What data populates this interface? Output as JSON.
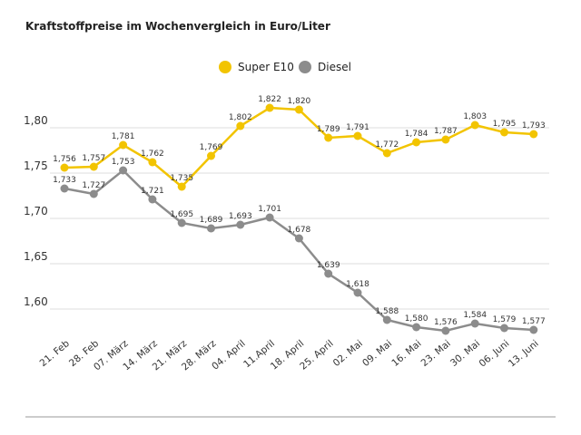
{
  "chart_data": {
    "type": "line",
    "title": "Kraftstoffpreise im Wochenvergleich in Euro/Liter",
    "xlabel": "",
    "ylabel": "",
    "categories": [
      "21. Feb",
      "28. Feb",
      "07. März",
      "14. März",
      "21. März",
      "28. März",
      "04. April",
      "11.April",
      "18. April",
      "25. April",
      "02. Mai",
      "09. Mai",
      "16. Mai",
      "23. Mai",
      "30. Mai",
      "06. Juni",
      "13. Juni"
    ],
    "series": [
      {
        "name": "Super E10",
        "color": "#f2c400",
        "values": [
          1.756,
          1.757,
          1.781,
          1.762,
          1.735,
          1.769,
          1.802,
          1.822,
          1.82,
          1.789,
          1.791,
          1.772,
          1.784,
          1.787,
          1.803,
          1.795,
          1.793
        ]
      },
      {
        "name": "Diesel",
        "color": "#8c8c8c",
        "values": [
          1.733,
          1.727,
          1.753,
          1.721,
          1.695,
          1.689,
          1.693,
          1.701,
          1.678,
          1.639,
          1.618,
          1.588,
          1.58,
          1.576,
          1.584,
          1.579,
          1.577
        ]
      }
    ],
    "yticks": [
      "1,80",
      "1,75",
      "1,70",
      "1,65",
      "1,60"
    ],
    "ytick_values": [
      1.8,
      1.75,
      1.7,
      1.65,
      1.6
    ],
    "grid": true,
    "legend": "top-center"
  }
}
